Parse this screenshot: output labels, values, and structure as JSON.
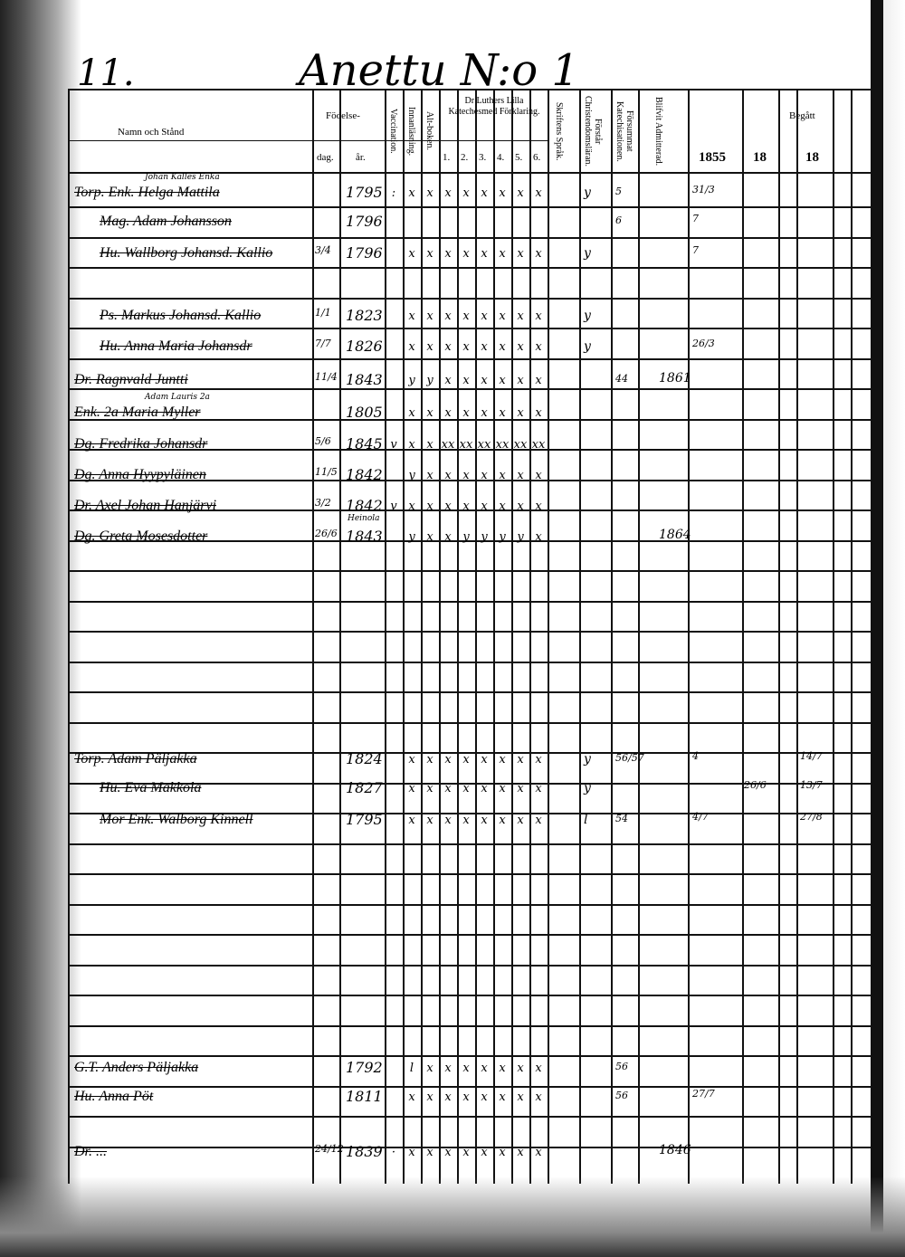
{
  "page": {
    "number": "11.",
    "farm": "Anettu N:o 1"
  },
  "headers": {
    "name": "Namn och Stånd",
    "birth": "Födelse-",
    "day": "dag.",
    "year": "år.",
    "vaccination": "Vaccination.",
    "reading": "Innanläsning.",
    "alt_book": "Alt-boken.",
    "catechism": "Dr Luthers Lilla Katechesmed Förklaring.",
    "catechism_parts": [
      "1.",
      "2.",
      "3.",
      "4.",
      "5.",
      "6."
    ],
    "scripture": "Skriftens Språk.",
    "understands": "Förstår Christendomsläran.",
    "missed": "Försummat Katechisationen.",
    "admitted": "Blifvit Admitterad.",
    "communion": "Begått",
    "communion_years": [
      "1855",
      "18",
      "18"
    ]
  },
  "entries": [
    {
      "note": "Johan Kalles Enka",
      "name": "Torp. Enk. Helga Mattila",
      "day": "",
      "year": "1795",
      "marks": [
        ":",
        "x",
        "x",
        "x",
        "x",
        "x",
        "x",
        "x",
        "x"
      ],
      "scripture": "y",
      "missed": "5",
      "admitted": "",
      "communion": "31/3"
    },
    {
      "name": "Mag. Adam Johansson",
      "day": "",
      "year": "1796",
      "marks": [
        "",
        "",
        "",
        "",
        "",
        "",
        "",
        "",
        ""
      ],
      "scripture": "",
      "missed": "6",
      "admitted": "",
      "communion": "7"
    },
    {
      "name": "Hu. Wallborg Johansd. Kallio",
      "day": "3/4",
      "year": "1796",
      "marks": [
        "",
        "x",
        "x",
        "x",
        "x",
        "x",
        "x",
        "x",
        "x"
      ],
      "scripture": "y",
      "missed": "",
      "admitted": "",
      "communion": "7"
    },
    {
      "name": "Ps. Markus Johansd. Kallio",
      "day": "1/1",
      "year": "1823",
      "marks": [
        "",
        "x",
        "x",
        "x",
        "x",
        "x",
        "x",
        "x",
        "x"
      ],
      "scripture": "y",
      "missed": "",
      "admitted": "",
      "communion": ""
    },
    {
      "name": "Hu. Anna Maria Johansdr",
      "day": "7/7",
      "year": "1826",
      "marks": [
        "",
        "x",
        "x",
        "x",
        "x",
        "x",
        "x",
        "x",
        "x"
      ],
      "scripture": "y",
      "missed": "",
      "admitted": "",
      "communion": "26/3"
    },
    {
      "name": "Dr. Ragnvald Juntti",
      "day": "11/4",
      "year": "1843",
      "marks": [
        "",
        "y",
        "y",
        "x",
        "x",
        "x",
        "x",
        "x",
        "x"
      ],
      "scripture": "",
      "missed": "44",
      "admitted": "1861",
      "communion": ""
    },
    {
      "note": "Adam Lauris 2a",
      "name": "Enk. 2a Maria Myller",
      "day": "",
      "year": "1805",
      "marks": [
        "",
        "x",
        "x",
        "x",
        "x",
        "x",
        "x",
        "x",
        "x"
      ],
      "scripture": "",
      "missed": "",
      "admitted": "",
      "communion": ""
    },
    {
      "name": "Dg. Fredrika Johansdr",
      "day": "5/6",
      "year": "1845",
      "marks": [
        "v",
        "x",
        "x",
        "xx",
        "xx",
        "xx",
        "xx",
        "xx",
        "xx"
      ],
      "scripture": "",
      "missed": "",
      "admitted": "",
      "communion": ""
    },
    {
      "name": "Dg. Anna Hyypyläinen",
      "day": "11/5",
      "year": "1842",
      "marks": [
        "",
        "y",
        "x",
        "x",
        "x",
        "x",
        "x",
        "x",
        "x"
      ],
      "scripture": "",
      "missed": "",
      "admitted": "",
      "communion": ""
    },
    {
      "name": "Dr. Axel Johan Hanjärvi",
      "day": "3/2",
      "year": "1842",
      "place": "Heinola",
      "marks": [
        "v",
        "x",
        "x",
        "x",
        "x",
        "x",
        "x",
        "x",
        "x"
      ],
      "scripture": "",
      "missed": "",
      "admitted": "",
      "communion": ""
    },
    {
      "name": "Dg. Greta Mosesdotter",
      "day": "26/6",
      "year": "1843",
      "marks": [
        "",
        "y",
        "x",
        "x",
        "y",
        "y",
        "y",
        "y",
        "x"
      ],
      "scripture": "",
      "missed": "",
      "admitted": "1864",
      "communion": ""
    },
    {
      "name": "Torp. Adam Päljakka",
      "day": "",
      "year": "1824",
      "marks": [
        "",
        "x",
        "x",
        "x",
        "x",
        "x",
        "x",
        "x",
        "x"
      ],
      "scripture": "y",
      "missed": "56/57",
      "admitted": "",
      "communion": "4",
      "communion2": "",
      "communion3": "14/7"
    },
    {
      "name": "Hu. Eva Makkola",
      "day": "",
      "year": "1827",
      "marks": [
        "",
        "x",
        "x",
        "x",
        "x",
        "x",
        "x",
        "x",
        "x"
      ],
      "scripture": "y",
      "missed": "",
      "admitted": "",
      "communion": "",
      "communion2": "26/6",
      "communion3": "13/7"
    },
    {
      "name": "Mor Enk. Walborg Kinnell",
      "day": "",
      "year": "1795",
      "marks": [
        "",
        "x",
        "x",
        "x",
        "x",
        "x",
        "x",
        "x",
        "x"
      ],
      "scripture": "l",
      "missed": "54",
      "admitted": "",
      "communion": "4/7",
      "communion2": "",
      "communion3": "27/8"
    },
    {
      "name": "G.T. Anders Päljakka",
      "day": "",
      "year": "1792",
      "marks": [
        "",
        "l",
        "x",
        "x",
        "x",
        "x",
        "x",
        "x",
        "x"
      ],
      "scripture": "",
      "missed": "56",
      "admitted": "",
      "communion": ""
    },
    {
      "name": "Hu. Anna Pöt",
      "day": "",
      "year": "1811",
      "marks": [
        "",
        "x",
        "x",
        "x",
        "x",
        "x",
        "x",
        "x",
        "x"
      ],
      "scripture": "",
      "missed": "56",
      "admitted": "",
      "communion": "27/7"
    },
    {
      "name": "Dr. ...",
      "day": "24/12",
      "year": "1839",
      "marks": [
        "·",
        "x",
        "x",
        "x",
        "x",
        "x",
        "x",
        "x",
        "x"
      ],
      "scripture": "",
      "missed": "",
      "admitted": "1846",
      "communion": ""
    }
  ]
}
